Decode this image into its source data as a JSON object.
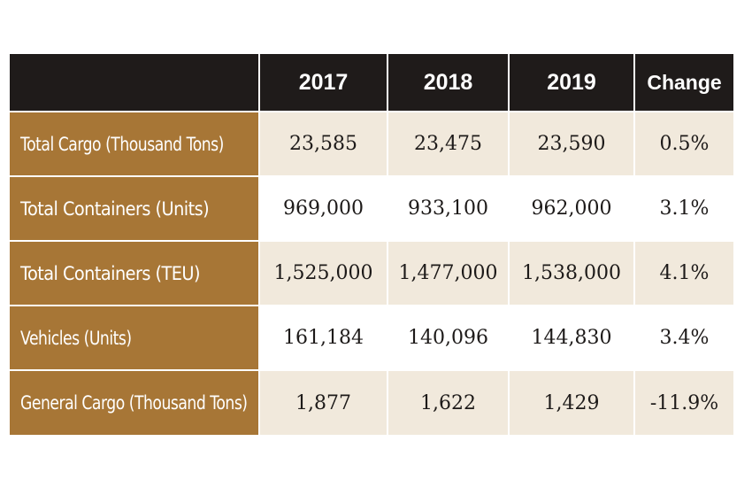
{
  "table": {
    "headers": [
      "",
      "2017",
      "2018",
      "2019",
      "Change"
    ],
    "rows": [
      {
        "label": "Total Cargo (Thousand Tons)",
        "y2017": "23,585",
        "y2018": "23,475",
        "y2019": "23,590",
        "change": "0.5%"
      },
      {
        "label": "Total Containers (Units)",
        "y2017": "969,000",
        "y2018": "933,100",
        "y2019": "962,000",
        "change": "3.1%"
      },
      {
        "label": "Total Containers (TEU)",
        "y2017": "1,525,000",
        "y2018": "1,477,000",
        "y2019": "1,538,000",
        "change": "4.1%"
      },
      {
        "label": "Vehicles (Units)",
        "y2017": "161,184",
        "y2018": "140,096",
        "y2019": "144,830",
        "change": "3.4%"
      },
      {
        "label": "General Cargo (Thousand Tons)",
        "y2017": "1,877",
        "y2018": "1,622",
        "y2019": "1,429",
        "change": "-11.9%"
      }
    ]
  },
  "colors": {
    "header_bg": "#1f1b1a",
    "label_bg": "#a77636",
    "shaded_row_bg": "#f1e9dc",
    "plain_row_bg": "#ffffff"
  }
}
